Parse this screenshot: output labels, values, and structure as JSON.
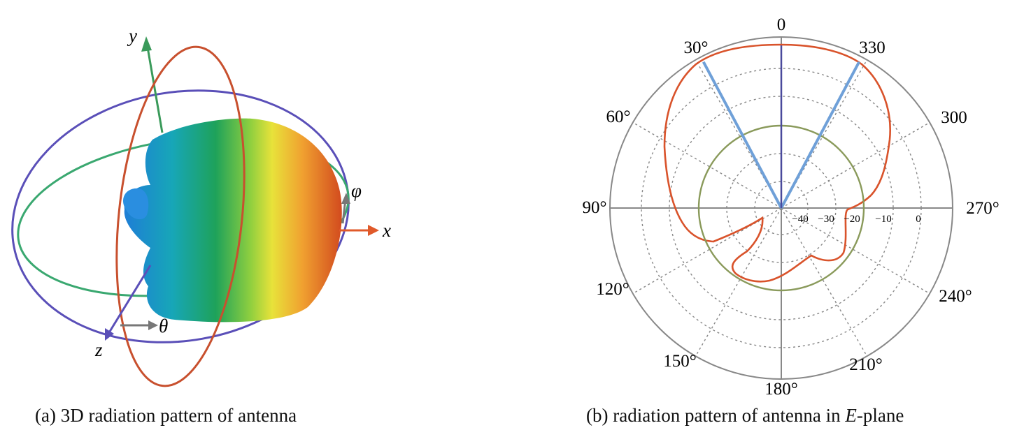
{
  "panel_a": {
    "caption": "(a) 3D radiation pattern of antenna",
    "axes": {
      "x": "x",
      "y": "y",
      "z": "z",
      "theta": "θ",
      "phi": "φ"
    }
  },
  "panel_b": {
    "caption_prefix": "(b) radiation pattern of antenna in ",
    "caption_italic": "E",
    "caption_suffix": "-plane",
    "angle_labels": [
      "0",
      "30°",
      "60°",
      "90°",
      "120°",
      "150°",
      "180°",
      "210°",
      "240°",
      "270°",
      "300",
      "330"
    ],
    "radial_labels": [
      "−40",
      "−30",
      "−20",
      "−10",
      "0"
    ],
    "rlim": [
      -40,
      0
    ],
    "colors": {
      "pattern": "#d9532b",
      "circle": "#8a9a5b",
      "beam": "#6fa0d8",
      "axis": "#4a4a9c"
    }
  }
}
